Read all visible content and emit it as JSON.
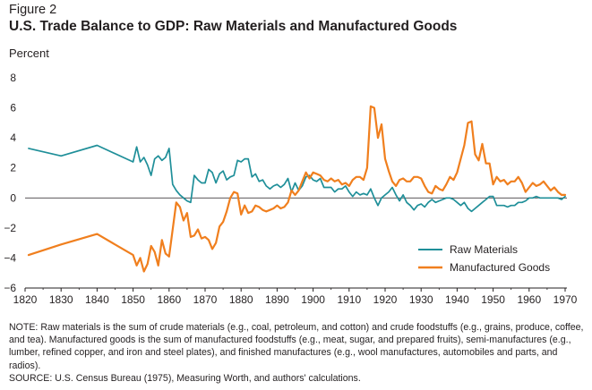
{
  "figure_label": "Figure 2",
  "notes": {
    "note": "NOTE: Raw materials is the sum of crude materials (e.g., coal, petroleum, and cotton) and crude foodstuffs (e.g., grains, produce, coffee, and tea). Manufactured goods is the sum of manufactured foodstuffs (e.g., meat, sugar, and prepared fruits), semi-manufactures (e.g., lumber, refined copper, and iron and steel plates), and finished manufactures (e.g., wool manufactures, automobiles and parts, and radios).",
    "source": "SOURCE: U.S. Census Bureau (1975), Measuring Worth, and authors' calculations."
  },
  "colors": {
    "raw": "#1f8f99",
    "manufactured": "#f07f1e",
    "axis": "#231f20"
  },
  "chart_data": {
    "type": "line",
    "title": "U.S. Trade Balance to GDP: Raw Materials and Manufactured Goods",
    "ylabel": "Percent",
    "xlabel": "",
    "xlim": [
      1820,
      1970
    ],
    "ylim": [
      -6,
      8
    ],
    "xticks": [
      1820,
      1830,
      1840,
      1850,
      1860,
      1870,
      1880,
      1890,
      1900,
      1910,
      1920,
      1930,
      1940,
      1950,
      1960,
      1970
    ],
    "yticks": [
      -6,
      -4,
      -2,
      0,
      2,
      4,
      6,
      8
    ],
    "grid": false,
    "legend": "bottom-right",
    "series": [
      {
        "name": "Raw Materials",
        "color": "#1f8f99",
        "points": [
          [
            1821,
            3.3
          ],
          [
            1830,
            2.8
          ],
          [
            1840,
            3.5
          ],
          [
            1850,
            2.4
          ],
          [
            1851,
            3.4
          ],
          [
            1852,
            2.4
          ],
          [
            1853,
            2.7
          ],
          [
            1854,
            2.2
          ],
          [
            1855,
            1.5
          ],
          [
            1856,
            2.6
          ],
          [
            1857,
            2.8
          ],
          [
            1858,
            2.5
          ],
          [
            1859,
            2.7
          ],
          [
            1860,
            3.3
          ],
          [
            1861,
            0.9
          ],
          [
            1862,
            0.5
          ],
          [
            1863,
            0.2
          ],
          [
            1864,
            0
          ],
          [
            1865,
            -0.2
          ],
          [
            1866,
            -0.3
          ],
          [
            1867,
            1.5
          ],
          [
            1868,
            1.2
          ],
          [
            1869,
            1
          ],
          [
            1870,
            1
          ],
          [
            1871,
            1.9
          ],
          [
            1872,
            1.7
          ],
          [
            1873,
            1
          ],
          [
            1874,
            1.6
          ],
          [
            1875,
            1.8
          ],
          [
            1876,
            1.2
          ],
          [
            1877,
            1.4
          ],
          [
            1878,
            1.5
          ],
          [
            1879,
            2.5
          ],
          [
            1880,
            2.4
          ],
          [
            1881,
            2.6
          ],
          [
            1882,
            2.6
          ],
          [
            1883,
            1.4
          ],
          [
            1884,
            1.6
          ],
          [
            1885,
            1.1
          ],
          [
            1886,
            1.2
          ],
          [
            1887,
            0.8
          ],
          [
            1888,
            0.6
          ],
          [
            1889,
            0.8
          ],
          [
            1890,
            0.9
          ],
          [
            1891,
            0.7
          ],
          [
            1892,
            0.9
          ],
          [
            1893,
            1.3
          ],
          [
            1894,
            0.4
          ],
          [
            1895,
            1
          ],
          [
            1896,
            0.5
          ],
          [
            1897,
            0.8
          ],
          [
            1898,
            1.4
          ],
          [
            1899,
            1.5
          ],
          [
            1900,
            1.2
          ],
          [
            1901,
            1.1
          ],
          [
            1902,
            1.3
          ],
          [
            1903,
            0.7
          ],
          [
            1904,
            0.7
          ],
          [
            1905,
            0.7
          ],
          [
            1906,
            0.4
          ],
          [
            1907,
            0.6
          ],
          [
            1908,
            0.6
          ],
          [
            1909,
            0.8
          ],
          [
            1910,
            0.4
          ],
          [
            1911,
            0.1
          ],
          [
            1912,
            0.4
          ],
          [
            1913,
            0.2
          ],
          [
            1914,
            0.3
          ],
          [
            1915,
            0.2
          ],
          [
            1916,
            0.6
          ],
          [
            1917,
            0
          ],
          [
            1918,
            -0.5
          ],
          [
            1919,
            0
          ],
          [
            1920,
            0.2
          ],
          [
            1921,
            0.4
          ],
          [
            1922,
            0.7
          ],
          [
            1923,
            0.2
          ],
          [
            1924,
            -0.2
          ],
          [
            1925,
            0.2
          ],
          [
            1926,
            -0.3
          ],
          [
            1927,
            -0.5
          ],
          [
            1928,
            -0.8
          ],
          [
            1929,
            -0.5
          ],
          [
            1930,
            -0.4
          ],
          [
            1931,
            -0.6
          ],
          [
            1932,
            -0.3
          ],
          [
            1933,
            -0.1
          ],
          [
            1934,
            -0.3
          ],
          [
            1935,
            -0.2
          ],
          [
            1936,
            -0.1
          ],
          [
            1937,
            0
          ],
          [
            1938,
            0
          ],
          [
            1939,
            -0.1
          ],
          [
            1940,
            -0.3
          ],
          [
            1941,
            -0.5
          ],
          [
            1942,
            -0.3
          ],
          [
            1943,
            -0.7
          ],
          [
            1944,
            -0.9
          ],
          [
            1945,
            -0.7
          ],
          [
            1946,
            -0.5
          ],
          [
            1947,
            -0.3
          ],
          [
            1948,
            -0.1
          ],
          [
            1949,
            0.1
          ],
          [
            1950,
            0.1
          ],
          [
            1951,
            -0.5
          ],
          [
            1952,
            -0.5
          ],
          [
            1953,
            -0.5
          ],
          [
            1954,
            -0.6
          ],
          [
            1955,
            -0.5
          ],
          [
            1956,
            -0.5
          ],
          [
            1957,
            -0.3
          ],
          [
            1958,
            -0.3
          ],
          [
            1959,
            -0.2
          ],
          [
            1960,
            0
          ],
          [
            1961,
            0
          ],
          [
            1962,
            0.1
          ],
          [
            1963,
            0
          ],
          [
            1964,
            0
          ],
          [
            1965,
            0
          ],
          [
            1966,
            0
          ],
          [
            1967,
            0
          ],
          [
            1968,
            0
          ],
          [
            1969,
            -0.1
          ],
          [
            1970,
            0.1
          ]
        ]
      },
      {
        "name": "Manufactured Goods",
        "color": "#f07f1e",
        "points": [
          [
            1821,
            -3.8
          ],
          [
            1830,
            -3.1
          ],
          [
            1840,
            -2.4
          ],
          [
            1850,
            -3.8
          ],
          [
            1851,
            -4.5
          ],
          [
            1852,
            -4
          ],
          [
            1853,
            -4.9
          ],
          [
            1854,
            -4.4
          ],
          [
            1855,
            -3.2
          ],
          [
            1856,
            -3.6
          ],
          [
            1857,
            -4.5
          ],
          [
            1858,
            -2.8
          ],
          [
            1859,
            -3.7
          ],
          [
            1860,
            -3.9
          ],
          [
            1861,
            -2.1
          ],
          [
            1862,
            -0.3
          ],
          [
            1863,
            -0.6
          ],
          [
            1864,
            -1.5
          ],
          [
            1865,
            -1
          ],
          [
            1866,
            -2.6
          ],
          [
            1867,
            -2.5
          ],
          [
            1868,
            -2.1
          ],
          [
            1869,
            -2.7
          ],
          [
            1870,
            -2.6
          ],
          [
            1871,
            -2.8
          ],
          [
            1872,
            -3.4
          ],
          [
            1873,
            -3
          ],
          [
            1874,
            -1.9
          ],
          [
            1875,
            -1.6
          ],
          [
            1876,
            -0.9
          ],
          [
            1877,
            0
          ],
          [
            1878,
            0.4
          ],
          [
            1879,
            0.3
          ],
          [
            1880,
            -1.1
          ],
          [
            1881,
            -0.5
          ],
          [
            1882,
            -1
          ],
          [
            1883,
            -0.9
          ],
          [
            1884,
            -0.5
          ],
          [
            1885,
            -0.6
          ],
          [
            1886,
            -0.8
          ],
          [
            1887,
            -0.9
          ],
          [
            1888,
            -0.8
          ],
          [
            1889,
            -0.7
          ],
          [
            1890,
            -0.5
          ],
          [
            1891,
            -0.7
          ],
          [
            1892,
            -0.6
          ],
          [
            1893,
            -0.3
          ],
          [
            1894,
            0.5
          ],
          [
            1895,
            0.2
          ],
          [
            1896,
            0.5
          ],
          [
            1897,
            1.1
          ],
          [
            1898,
            1.7
          ],
          [
            1899,
            1.3
          ],
          [
            1900,
            1.7
          ],
          [
            1901,
            1.6
          ],
          [
            1902,
            1.5
          ],
          [
            1903,
            1.2
          ],
          [
            1904,
            1.1
          ],
          [
            1905,
            1.3
          ],
          [
            1906,
            1.1
          ],
          [
            1907,
            1.2
          ],
          [
            1908,
            0.9
          ],
          [
            1909,
            1
          ],
          [
            1910,
            0.8
          ],
          [
            1911,
            1.2
          ],
          [
            1912,
            1.4
          ],
          [
            1913,
            1.4
          ],
          [
            1914,
            1.2
          ],
          [
            1915,
            2
          ],
          [
            1916,
            6.1
          ],
          [
            1917,
            6
          ],
          [
            1918,
            4
          ],
          [
            1919,
            4.9
          ],
          [
            1920,
            2.6
          ],
          [
            1921,
            1.8
          ],
          [
            1922,
            1.1
          ],
          [
            1923,
            0.8
          ],
          [
            1924,
            1.2
          ],
          [
            1925,
            1.3
          ],
          [
            1926,
            1.1
          ],
          [
            1927,
            1.1
          ],
          [
            1928,
            1.4
          ],
          [
            1929,
            1.4
          ],
          [
            1930,
            1.3
          ],
          [
            1931,
            0.8
          ],
          [
            1932,
            0.4
          ],
          [
            1933,
            0.3
          ],
          [
            1934,
            0.8
          ],
          [
            1935,
            0.6
          ],
          [
            1936,
            0.5
          ],
          [
            1937,
            0.9
          ],
          [
            1938,
            1.4
          ],
          [
            1939,
            1.2
          ],
          [
            1940,
            1.7
          ],
          [
            1941,
            2.6
          ],
          [
            1942,
            3.5
          ],
          [
            1943,
            5
          ],
          [
            1944,
            5.1
          ],
          [
            1945,
            2.9
          ],
          [
            1946,
            2.5
          ],
          [
            1947,
            3.6
          ],
          [
            1948,
            2.3
          ],
          [
            1949,
            2.3
          ],
          [
            1950,
            0.9
          ],
          [
            1951,
            1.4
          ],
          [
            1952,
            1.1
          ],
          [
            1953,
            1.2
          ],
          [
            1954,
            0.9
          ],
          [
            1955,
            1.1
          ],
          [
            1956,
            1.1
          ],
          [
            1957,
            1.4
          ],
          [
            1958,
            1
          ],
          [
            1959,
            0.4
          ],
          [
            1960,
            0.7
          ],
          [
            1961,
            1
          ],
          [
            1962,
            0.8
          ],
          [
            1963,
            0.9
          ],
          [
            1964,
            1.1
          ],
          [
            1965,
            0.8
          ],
          [
            1966,
            0.5
          ],
          [
            1967,
            0.7
          ],
          [
            1968,
            0.4
          ],
          [
            1969,
            0.2
          ],
          [
            1970,
            0.2
          ]
        ]
      }
    ]
  }
}
